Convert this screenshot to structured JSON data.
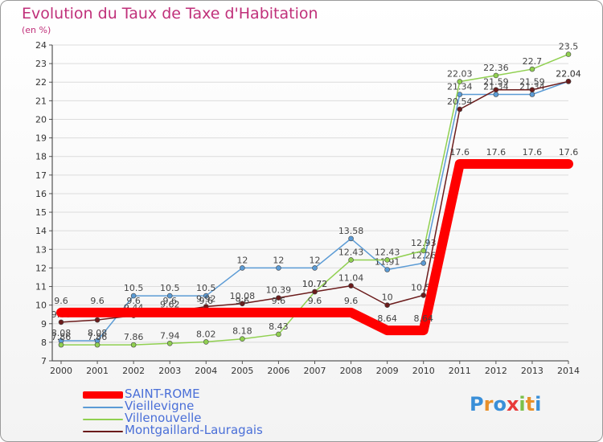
{
  "chart_data": {
    "type": "line",
    "title": "Evolution du Taux de Taxe d'Habitation",
    "subtitle": "(en %)",
    "x": [
      "2000",
      "2001",
      "2002",
      "2003",
      "2004",
      "2005",
      "2006",
      "2007",
      "2008",
      "2009",
      "2010",
      "2011",
      "2012",
      "2013",
      "2014"
    ],
    "ylim": [
      7,
      24
    ],
    "yticks": [
      "7",
      "8",
      "9",
      "10",
      "11",
      "12",
      "13",
      "14",
      "15",
      "16",
      "17",
      "18",
      "19",
      "20",
      "21",
      "22",
      "23",
      "24"
    ],
    "series": [
      {
        "name": "SAINT-ROME",
        "color": "#ff0000",
        "values": [
          9.6,
          9.6,
          9.6,
          9.6,
          9.6,
          9.6,
          9.6,
          9.6,
          9.6,
          8.64,
          8.64,
          17.6,
          17.6,
          17.6,
          17.6
        ],
        "labels": [
          "9.6",
          "9.6",
          "9.6",
          "9.6",
          "9.6",
          "9.6",
          "9.6",
          "9.6",
          "9.6",
          "8.64",
          "8.64",
          "17.6",
          "17.6",
          "17.6",
          "17.6"
        ]
      },
      {
        "name": "Vieillevigne",
        "color": "#5b9bd5",
        "values": [
          8.08,
          8.08,
          10.5,
          10.5,
          10.5,
          12,
          12,
          12,
          13.58,
          11.91,
          12.26,
          21.34,
          21.34,
          21.34,
          22.04
        ],
        "labels": [
          "8.08",
          "8.08",
          "10.5",
          "10.5",
          "10.5",
          "12",
          "12",
          "12",
          "13.58",
          "11.91",
          "12.26",
          "21.34",
          "21.34",
          "21.34",
          "22.04"
        ]
      },
      {
        "name": "Villenouvelle",
        "color": "#90d050",
        "values": [
          7.86,
          7.86,
          7.86,
          7.94,
          8.02,
          8.18,
          8.43,
          10.72,
          12.43,
          12.43,
          12.93,
          22.03,
          22.36,
          22.7,
          23.5
        ],
        "labels": [
          "7.86",
          "7.86",
          "7.86",
          "7.94",
          "8.02",
          "8.18",
          "8.43",
          "10.72",
          "12.43",
          "12.43",
          "12.93",
          "22.03",
          "22.36",
          "22.7",
          "23.5"
        ]
      },
      {
        "name": "Montgaillard-Lauragais",
        "color": "#6b1b1b",
        "values": [
          9.08,
          9.2,
          9.44,
          9.62,
          9.92,
          10.08,
          10.39,
          10.72,
          11.04,
          10,
          10.53,
          20.54,
          21.59,
          21.59,
          22.04
        ],
        "labels": [
          "9.08",
          "9.2",
          "9.44",
          "9.62",
          "9.92",
          "10.08",
          "10.39",
          "10.72",
          "11.04",
          "10",
          "10.53",
          "20.54",
          "21.59",
          "21.59",
          "22.04"
        ]
      }
    ]
  },
  "logo": {
    "letters": [
      "P",
      "r",
      "o",
      "x",
      "i",
      "t",
      "i"
    ],
    "colors": [
      "#3a8fd8",
      "#e8902a",
      "#3a8fd8",
      "#e83a3a",
      "#7cc04a",
      "#e8902a",
      "#3a8fd8"
    ]
  }
}
